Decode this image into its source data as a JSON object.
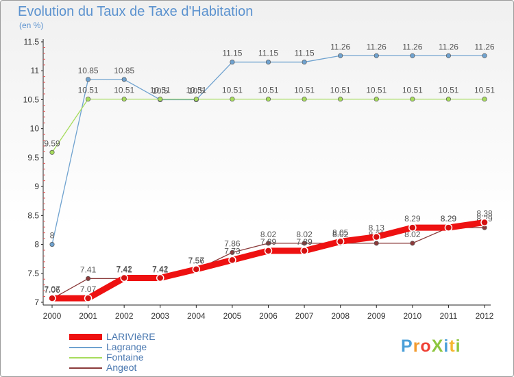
{
  "header": {
    "title": "Evolution du Taux de Taxe d'Habitation",
    "subtitle": "(en %)"
  },
  "logo": {
    "text": "ProXiti",
    "colors": [
      "#4a9fd8",
      "#f29a2e",
      "#ef4136",
      "#8dc63f",
      "#4a9fd8",
      "#f7b731",
      "#8dc63f"
    ]
  },
  "chart_data": {
    "type": "line",
    "title": "Evolution du Taux de Taxe d'Habitation",
    "ylabel": "(en %)",
    "xlabel": "",
    "ylim": [
      7,
      11.5
    ],
    "yticks": [
      "7",
      "7.5",
      "8",
      "8.5",
      "9",
      "9.5",
      "10",
      "10.5",
      "11",
      "11.5"
    ],
    "x": [
      "2000",
      "2001",
      "2002",
      "2003",
      "2004",
      "2005",
      "2006",
      "2007",
      "2008",
      "2009",
      "2010",
      "2011",
      "2012"
    ],
    "grid": false,
    "legend_position": "bottom-left",
    "series": [
      {
        "name": "Lagrange",
        "color": "#6fa2cf",
        "values": [
          8,
          10.85,
          10.85,
          10.5,
          10.5,
          11.15,
          11.15,
          11.15,
          11.26,
          11.26,
          11.26,
          11.26,
          11.26
        ],
        "labels": [
          "8",
          "10.85",
          "10.85",
          "10.5",
          "10.5",
          "11.15",
          "11.15",
          "11.15",
          "11.26",
          "11.26",
          "11.26",
          "11.26",
          "11.26"
        ]
      },
      {
        "name": "Fontaine",
        "color": "#a6dc5c",
        "values": [
          9.59,
          10.51,
          10.51,
          10.51,
          10.51,
          10.51,
          10.51,
          10.51,
          10.51,
          10.51,
          10.51,
          10.51,
          10.51
        ],
        "labels": [
          "9.59",
          "10.51",
          "10.51",
          "10.51",
          "10.51",
          "10.51",
          "10.51",
          "10.51",
          "10.51",
          "10.51",
          "10.51",
          "10.51",
          "10.51"
        ]
      },
      {
        "name": "Angeot",
        "color": "#8b3a3a",
        "values": [
          7.06,
          7.41,
          7.41,
          7.41,
          7.56,
          7.86,
          8.02,
          8.02,
          8.02,
          8.02,
          8.02,
          8.29,
          8.29
        ],
        "labels": [
          "7.06",
          "7.41",
          "7.41",
          "7.41",
          "7.56",
          "7.86",
          "8.02",
          "8.02",
          "8.02",
          "8.02",
          "8.02",
          "8.29",
          "8.29"
        ]
      },
      {
        "name": "LARIVIèRE",
        "color": "#ee1111",
        "values": [
          7.07,
          7.07,
          7.42,
          7.42,
          7.57,
          7.73,
          7.89,
          7.89,
          8.05,
          8.13,
          8.29,
          8.29,
          8.38
        ],
        "labels": [
          "7.07",
          "7.07",
          "7.42",
          "7.42",
          "7.57",
          "7.73",
          "7.89",
          "7.89",
          "8.05",
          "8.13",
          "8.29",
          "8.29",
          "8.38"
        ]
      }
    ]
  }
}
